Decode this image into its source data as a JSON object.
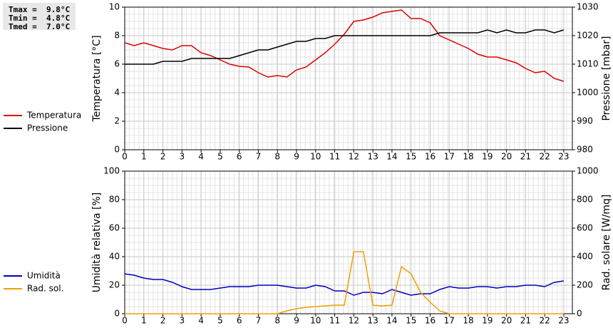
{
  "chart_data": [
    {
      "type": "line",
      "stats": [
        "Tmax =  9.8°C",
        "Tmin =  4.8°C",
        "Tmed =  7.0°C"
      ],
      "ylabel": "Temperatura [°C]",
      "y2label": "Pressione [mbar]",
      "x": [
        0,
        0.5,
        1,
        1.5,
        2,
        2.5,
        3,
        3.5,
        4,
        4.5,
        5,
        5.5,
        6,
        6.5,
        7,
        7.5,
        8,
        8.5,
        9,
        9.5,
        10,
        10.5,
        11,
        11.5,
        12,
        12.5,
        13,
        13.5,
        14,
        14.5,
        15,
        15.5,
        16,
        16.5,
        17,
        17.5,
        18,
        18.5,
        19,
        19.5,
        20,
        20.5,
        21,
        21.5,
        22,
        22.5,
        23
      ],
      "xlim": [
        0,
        23.45
      ],
      "xticks": [
        0,
        1,
        2,
        3,
        4,
        5,
        6,
        7,
        8,
        9,
        10,
        11,
        12,
        13,
        14,
        15,
        16,
        17,
        18,
        19,
        20,
        21,
        22,
        23
      ],
      "ylim": [
        0,
        10
      ],
      "yticks": [
        0,
        2,
        4,
        6,
        8,
        10
      ],
      "y2lim": [
        980,
        1030
      ],
      "y2ticks": [
        980,
        990,
        1000,
        1010,
        1020,
        1030
      ],
      "grid": true,
      "series": [
        {
          "name": "Temperatura",
          "color": "#dd0000",
          "values": [
            7.5,
            7.3,
            7.5,
            7.3,
            7.1,
            7.0,
            7.3,
            7.3,
            6.8,
            6.6,
            6.3,
            6.0,
            5.85,
            5.8,
            5.4,
            5.1,
            5.2,
            5.1,
            5.6,
            5.8,
            6.3,
            6.8,
            7.4,
            8.1,
            9.0,
            9.1,
            9.3,
            9.6,
            9.7,
            9.8,
            9.2,
            9.2,
            8.9,
            8.0,
            7.7,
            7.4,
            7.1,
            6.7,
            6.5,
            6.5,
            6.3,
            6.1,
            5.7,
            5.4,
            5.5,
            5.0,
            4.8
          ]
        },
        {
          "name": "Pressione",
          "color": "#000000",
          "axis": "y2",
          "values": [
            1010,
            1010,
            1010,
            1010,
            1011,
            1011,
            1011,
            1012,
            1012,
            1012,
            1012,
            1012,
            1013,
            1014,
            1015,
            1015,
            1016,
            1017,
            1018,
            1018,
            1019,
            1019,
            1020,
            1020,
            1020,
            1020,
            1020,
            1020,
            1020,
            1020,
            1020,
            1020,
            1020,
            1021,
            1021,
            1021,
            1021,
            1021,
            1022,
            1021,
            1022,
            1021,
            1021,
            1022,
            1022,
            1021,
            1022
          ]
        }
      ]
    },
    {
      "type": "line",
      "ylabel": "Umidità relativa [%]",
      "y2label": "Rad. solare [W/mq]",
      "x": [
        0,
        0.5,
        1,
        1.5,
        2,
        2.5,
        3,
        3.5,
        4,
        4.5,
        5,
        5.5,
        6,
        6.5,
        7,
        7.5,
        8,
        8.5,
        9,
        9.5,
        10,
        10.5,
        11,
        11.5,
        12,
        12.5,
        13,
        13.5,
        14,
        14.5,
        15,
        15.5,
        16,
        16.5,
        17,
        17.5,
        18,
        18.5,
        19,
        19.5,
        20,
        20.5,
        21,
        21.5,
        22,
        22.5,
        23
      ],
      "xlim": [
        0,
        23.45
      ],
      "xticks": [
        0,
        1,
        2,
        3,
        4,
        5,
        6,
        7,
        8,
        9,
        10,
        11,
        12,
        13,
        14,
        15,
        16,
        17,
        18,
        19,
        20,
        21,
        22,
        23
      ],
      "ylim": [
        0,
        100
      ],
      "yticks": [
        0,
        20,
        40,
        60,
        80,
        100
      ],
      "y2lim": [
        0,
        1000
      ],
      "y2ticks": [
        0,
        200,
        400,
        600,
        800,
        1000
      ],
      "grid": true,
      "series": [
        {
          "name": "Umidità",
          "color": "#0000bb",
          "values": [
            28,
            27,
            25,
            24,
            24,
            22,
            19,
            17,
            17,
            17,
            18,
            19,
            19,
            19,
            20,
            20,
            20,
            19,
            18,
            18,
            20,
            19,
            16,
            16,
            13,
            15,
            15,
            14,
            17,
            15,
            13,
            14,
            14,
            17,
            19,
            18,
            18,
            19,
            19,
            18,
            19,
            19,
            20,
            20,
            19,
            22,
            23
          ]
        },
        {
          "name": "Rad. sol.",
          "color": "#f0a000",
          "axis": "y2",
          "values": [
            0,
            0,
            0,
            0,
            0,
            0,
            0,
            0,
            0,
            0,
            0,
            0,
            0,
            0,
            0,
            0,
            0,
            20,
            35,
            45,
            50,
            55,
            60,
            60,
            435,
            435,
            60,
            55,
            60,
            330,
            280,
            150,
            80,
            20,
            0,
            0,
            0,
            0,
            0,
            0,
            0,
            0,
            0,
            0,
            0,
            0,
            0
          ]
        }
      ]
    }
  ]
}
